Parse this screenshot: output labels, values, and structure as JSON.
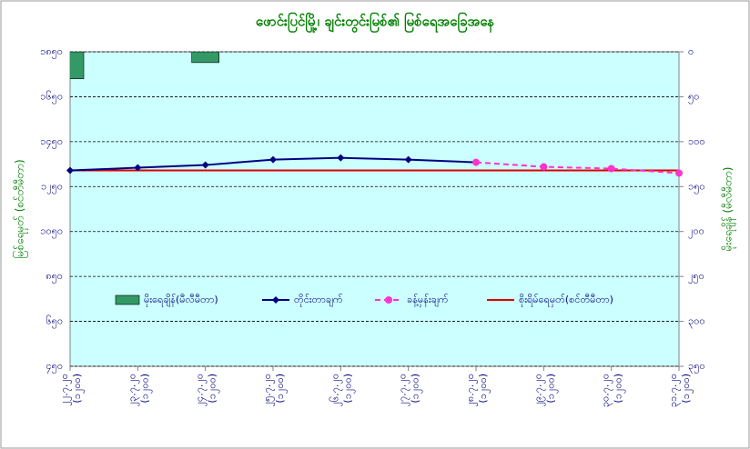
{
  "chart_data": {
    "type": "line",
    "title": "ဖောင်းပြင်မြို့၊ ချင်းတွင်းမြစ်၏ မြစ်ရေအခြေအနေ",
    "y_label": "မြစ်ရေမှတ် (စင်တီမီတာ)",
    "y2_label": "မိုးရေချိန် (မီလီမီတာ)",
    "categories": [
      "၂၂.၇.၂၀",
      "၂၃.၇.၂၀",
      "၂၄.၇.၂၀",
      "၂၅.၇.၂၀",
      "၂၆.၇.၂၀",
      "၂၇.၇.၂၀",
      "၂၈.၇.၂၀",
      "၂၉.၇.၂၀",
      "၃၀.၇.၂၀",
      "၃၁.၇.၂၀"
    ],
    "category_times": [
      "(၁၂၀၀)",
      "(၁၂၀၀)",
      "(၁၂၀၀)",
      "(၁၂၀၀)",
      "(၁၂၀၀)",
      "(၁၂၀၀)",
      "(၁၂၀၀)",
      "(၁၂၀၀)",
      "(၁၂၀၀)",
      "(၁၂၀၀)"
    ],
    "ylim": [
      450,
      1850
    ],
    "yticks": [
      {
        "value": 450,
        "label": "၄၅၀"
      },
      {
        "value": 650,
        "label": "၆၅၀"
      },
      {
        "value": 850,
        "label": "၈၅၀"
      },
      {
        "value": 1050,
        "label": "၁၀၅၀"
      },
      {
        "value": 1250,
        "label": "၁၂၅၀"
      },
      {
        "value": 1450,
        "label": "၁၄၅၀"
      },
      {
        "value": 1650,
        "label": "၁၆၅၀"
      },
      {
        "value": 1850,
        "label": "၁၈၅၀"
      }
    ],
    "y2lim": [
      350,
      0
    ],
    "y2ticks": [
      {
        "value": 0,
        "label": "၀"
      },
      {
        "value": 50,
        "label": "၅၀"
      },
      {
        "value": 100,
        "label": "၁၀၀"
      },
      {
        "value": 150,
        "label": "၁၅၀"
      },
      {
        "value": 200,
        "label": "၂၀၀"
      },
      {
        "value": 250,
        "label": "၂၅၀"
      },
      {
        "value": 300,
        "label": "၃၀၀"
      },
      {
        "value": 350,
        "label": "၃၅၀"
      }
    ],
    "grid": true,
    "series": [
      {
        "name": "မိုးရေချိန်(မီလီမီတာ)",
        "kind": "bar",
        "axis": "y2",
        "color": "#339966",
        "values": [
          30,
          0,
          12,
          0,
          0,
          0,
          0,
          0,
          0,
          0
        ]
      },
      {
        "name": "တိုင်းတာချက်",
        "kind": "line",
        "color": "#000080",
        "values": [
          1322,
          1334,
          1346,
          1370,
          1378,
          1370,
          1358,
          null,
          null,
          null
        ]
      },
      {
        "name": "ခန့်မှန်းချက်",
        "kind": "dashed",
        "color": "#ff33cc",
        "values": [
          null,
          null,
          null,
          null,
          null,
          null,
          1358,
          1338,
          1330,
          1310
        ]
      },
      {
        "name": "စိုးရိမ်ရေမှတ်(စင်တီမီတာ)",
        "kind": "plain",
        "color": "#e00000",
        "values": [
          1322,
          1322,
          1322,
          1322,
          1322,
          1322,
          1322,
          1322,
          1322,
          1322
        ]
      }
    ]
  }
}
